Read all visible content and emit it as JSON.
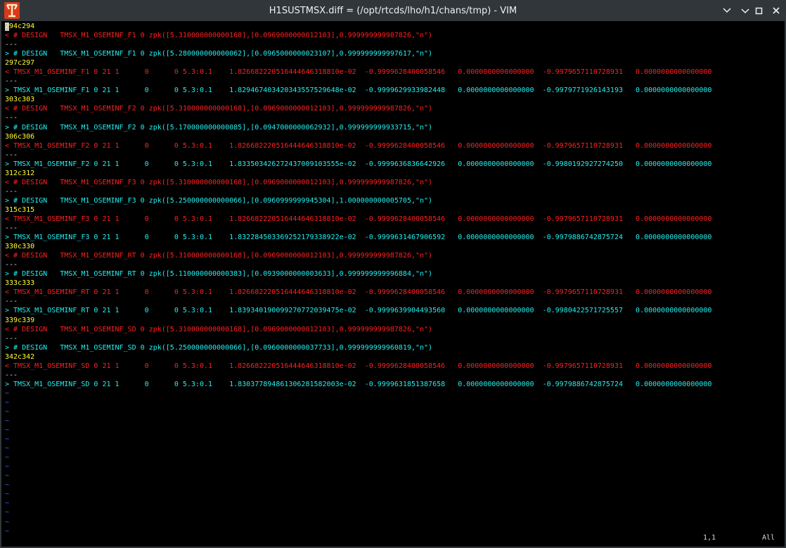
{
  "window": {
    "title": "H1SUSTMSX.diff = (/opt/rtcds/lho/h1/chans/tmp) - VIM"
  },
  "lines": [
    "294c294",
    "< # DESIGN   TMSX_M1_OSEMINF_F1 0 zpk([5.310000000000168],[0.0969000000012103],0.999999999987826,\"n\")",
    "---",
    "> # DESIGN   TMSX_M1_OSEMINF_F1 0 zpk([5.280000000000062],[0.0965000000023107],0.999999999997617,\"n\")",
    "297c297",
    "< TMSX_M1_OSEMINF_F1 0 21 1      0      0 5.3:0.1    1.826682220516444646318810e-02  -0.9999628400058546   0.0000000000000000  -0.9979657110728931   0.0000000000000000",
    "---",
    "> TMSX_M1_OSEMINF_F1 0 21 1      0      0 5.3:0.1    1.829467403420343557529648e-02  -0.9999629933982448   0.0000000000000000  -0.9979771926143193   0.0000000000000000",
    "303c303",
    "< # DESIGN   TMSX_M1_OSEMINF_F2 0 zpk([5.310000000000168],[0.0969000000012103],0.999999999987826,\"n\")",
    "---",
    "> # DESIGN   TMSX_M1_OSEMINF_F2 0 zpk([5.170000000000085],[0.0947000000062932],0.999999999933715,\"n\")",
    "306c306",
    "< TMSX_M1_OSEMINF_F2 0 21 1      0      0 5.3:0.1    1.826682220516444646318810e-02  -0.9999628400058546   0.0000000000000000  -0.9979657110728931   0.0000000000000000",
    "---",
    "> TMSX_M1_OSEMINF_F2 0 21 1      0      0 5.3:0.1    1.833503426272437009103555e-02  -0.9999636836642926   0.0000000000000000  -0.9980192927274250   0.0000000000000000",
    "312c312",
    "< # DESIGN   TMSX_M1_OSEMINF_F3 0 zpk([5.310000000000168],[0.0969000000012103],0.999999999987826,\"n\")",
    "---",
    "> # DESIGN   TMSX_M1_OSEMINF_F3 0 zpk([5.250000000000066],[0.0960999999945304],1.000000000005705,\"n\")",
    "315c315",
    "< TMSX_M1_OSEMINF_F3 0 21 1      0      0 5.3:0.1    1.826682220516444646318810e-02  -0.9999628400058546   0.0000000000000000  -0.9979657110728931   0.0000000000000000",
    "---",
    "> TMSX_M1_OSEMINF_F3 0 21 1      0      0 5.3:0.1    1.832284503369252179338922e-02  -0.9999631467906592   0.0000000000000000  -0.9979886742875724   0.0000000000000000",
    "330c330",
    "< # DESIGN   TMSX_M1_OSEMINF_RT 0 zpk([5.310000000000168],[0.0969000000012103],0.999999999987826,\"n\")",
    "---",
    "> # DESIGN   TMSX_M1_OSEMINF_RT 0 zpk([5.110000000000383],[0.0939000000003633],0.999999999996884,\"n\")",
    "333c333",
    "< TMSX_M1_OSEMINF_RT 0 21 1      0      0 5.3:0.1    1.826682220516444646318810e-02  -0.9999628400058546   0.0000000000000000  -0.9979657110728931   0.0000000000000000",
    "---",
    "> TMSX_M1_OSEMINF_RT 0 21 1      0      0 5.3:0.1    1.839340190099270772039475e-02  -0.9999639904493560   0.0000000000000000  -0.9980422571725557   0.0000000000000000",
    "339c339",
    "< # DESIGN   TMSX_M1_OSEMINF_SD 0 zpk([5.310000000000168],[0.0969000000012103],0.999999999987826,\"n\")",
    "---",
    "> # DESIGN   TMSX_M1_OSEMINF_SD 0 zpk([5.250000000000066],[0.0960000000037733],0.999999999960819,\"n\")",
    "342c342",
    "< TMSX_M1_OSEMINF_SD 0 21 1      0      0 5.3:0.1    1.826682220516444646318810e-02  -0.9999628400058546   0.0000000000000000  -0.9979657110728931   0.0000000000000000",
    "---",
    "> TMSX_M1_OSEMINF_SD 0 21 1      0      0 5.3:0.1    1.830377894861306281582003e-02  -0.9999631851387658   0.0000000000000000  -0.9979886742875724   0.0000000000000000",
    "~",
    "~",
    "~",
    "~",
    "~",
    "~",
    "~",
    "~",
    "~",
    "~",
    "~",
    "~",
    "~",
    "~",
    "~",
    "~"
  ],
  "status": {
    "position": "1,1",
    "scroll": "All"
  }
}
